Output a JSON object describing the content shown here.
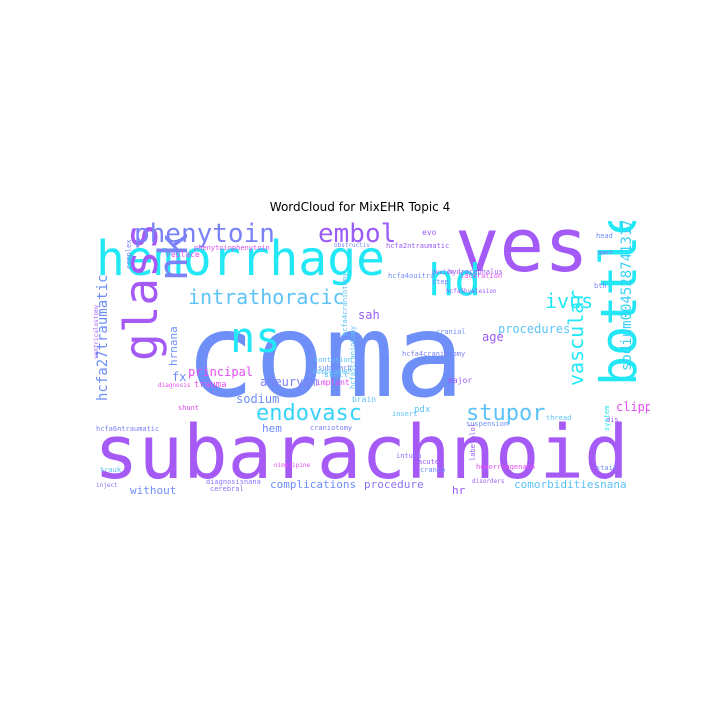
{
  "title": "WordCloud for MixEHR Topic 4",
  "colors": {
    "cyan": "#22e8f6",
    "blue": "#6e8ef8",
    "lightblue": "#5cc2f8",
    "violet": "#9b5cf8",
    "purple": "#b05af7",
    "magenta": "#e24ff1",
    "pink": "#f34ff3"
  },
  "words": [
    {
      "text": "coma",
      "color": "#6e8ef8"
    },
    {
      "text": "subarachnoid",
      "color": "#a55af6"
    },
    {
      "text": "ves",
      "color": "#a35af7"
    },
    {
      "text": "hemorrhage",
      "color": "#22e8f6"
    },
    {
      "text": "bottle",
      "color": "#22e8f6"
    },
    {
      "text": "glass",
      "color": "#a55af6"
    },
    {
      "text": "nk",
      "color": "#7a82f7"
    },
    {
      "text": "hd",
      "color": "#22e8f6"
    },
    {
      "text": "ns",
      "color": "#22e8f6"
    },
    {
      "text": "phenytoin",
      "color": "#7a82f7"
    },
    {
      "text": "embol",
      "color": "#9b5cf8"
    },
    {
      "text": "intrathoracic",
      "color": "#5cc2f8"
    },
    {
      "text": "ivus",
      "color": "#22e8f6"
    },
    {
      "text": "vascular",
      "color": "#22e8f6"
    },
    {
      "text": "endovasc",
      "color": "#38d2f7"
    },
    {
      "text": "stupor",
      "color": "#5cc2f8"
    },
    {
      "text": "sodium00452874131761",
      "color": "#38d2f7"
    },
    {
      "text": "hcfa27traumatic",
      "color": "#6e8ef8"
    },
    {
      "text": "procedures",
      "color": "#5cc2f8"
    },
    {
      "text": "sah",
      "color": "#9b5cf8"
    },
    {
      "text": "age",
      "color": "#9b5cf8"
    },
    {
      "text": "aneurysm",
      "color": "#7a82f7"
    },
    {
      "text": "principal",
      "color": "#e24ff1"
    },
    {
      "text": "sodium",
      "color": "#6e8ef8"
    },
    {
      "text": "clipping",
      "color": "#e24ff1"
    },
    {
      "text": "fx",
      "color": "#6e8ef8"
    },
    {
      "text": "hrnana",
      "color": "#6e8ef8"
    },
    {
      "text": "hem",
      "color": "#6e8ef8"
    },
    {
      "text": "complications",
      "color": "#6e8ef8"
    },
    {
      "text": "procedure",
      "color": "#8e72f7"
    },
    {
      "text": "comorbiditiesnana",
      "color": "#5cc2f8"
    },
    {
      "text": "without",
      "color": "#6e8ef8"
    },
    {
      "text": "hr",
      "color": "#9b5cf8"
    },
    {
      "text": "trauma",
      "color": "#e24ff1"
    },
    {
      "text": "skull",
      "color": "#5cc2f8"
    },
    {
      "text": "implant",
      "color": "#e24ff1"
    },
    {
      "text": "pdx",
      "color": "#5cc2f8"
    },
    {
      "text": "major",
      "color": "#9b5cf8"
    },
    {
      "text": "brain",
      "color": "#5cc2f8"
    },
    {
      "text": "shunt",
      "color": "#e24ff1"
    },
    {
      "text": "contusion",
      "color": "#5cc2f8"
    },
    {
      "text": "subarach",
      "color": "#6e8ef8"
    },
    {
      "text": "compiated",
      "color": "#5cc2f8"
    },
    {
      "text": "hcfa4craniotomy",
      "color": "#5cc2f8"
    },
    {
      "text": "hcfa5craniotomy",
      "color": "#5cc2f8"
    },
    {
      "text": "hcfa4craniotomy",
      "color": "#7a82f7"
    },
    {
      "text": "hcfa4ouitra",
      "color": "#6e8ef8"
    },
    {
      "text": "hcfa6ntraumatic",
      "color": "#7a82f7"
    },
    {
      "text": "diagnosis",
      "color": "#e24ff1"
    },
    {
      "text": "diagnosisnana",
      "color": "#8e72f7"
    },
    {
      "text": "hydrocephalus",
      "color": "#9b5cf8"
    },
    {
      "text": "laceration",
      "color": "#e24ff1"
    },
    {
      "text": "device",
      "color": "#9b5cf8"
    },
    {
      "text": "step",
      "color": "#7a82f7"
    },
    {
      "text": "cranial",
      "color": "#6e8ef8"
    },
    {
      "text": "insert",
      "color": "#5cc2f8"
    },
    {
      "text": "intusa",
      "color": "#8e72f7"
    },
    {
      "text": "cerebral",
      "color": "#8e72f7"
    },
    {
      "text": "inject",
      "color": "#8e72f7"
    },
    {
      "text": "hemorrhagenana",
      "color": "#e24ff1"
    },
    {
      "text": "suspension",
      "color": "#6e8ef8"
    },
    {
      "text": "stair",
      "color": "#6e8ef8"
    },
    {
      "text": "hcfa5hyalesion",
      "color": "#9b5cf8"
    },
    {
      "text": "complex",
      "color": "#7a82f7"
    },
    {
      "text": "replace",
      "color": "#e24ff1"
    },
    {
      "text": "phenytoinphenytoin",
      "color": "#e24ff1"
    },
    {
      "text": "obstructiv",
      "color": "#7a82f7"
    },
    {
      "text": "hcfa2ntraumatic",
      "color": "#9b5cf8"
    },
    {
      "text": "craniotomy",
      "color": "#7a82f7"
    },
    {
      "text": "evo",
      "color": "#9b5cf8"
    },
    {
      "text": "trauk",
      "color": "#5cc2f8"
    },
    {
      "text": "cranio",
      "color": "#6e8ef8"
    },
    {
      "text": "disorders",
      "color": "#9b5cf8"
    },
    {
      "text": "labetalol",
      "color": "#9b5cf8"
    },
    {
      "text": "acute",
      "color": "#9b5cf8"
    },
    {
      "text": "dis",
      "color": "#9b5cf8"
    },
    {
      "text": "head",
      "color": "#6e8ef8"
    },
    {
      "text": "bth",
      "color": "#7a82f7"
    },
    {
      "text": "nimodipine",
      "color": "#e24ff1"
    },
    {
      "text": "ventriculostomy",
      "color": "#9b5cf8"
    },
    {
      "text": "system",
      "color": "#22e8f6"
    },
    {
      "text": "thread",
      "color": "#5cc2f8"
    },
    {
      "text": "agent",
      "color": "#9b5cf8"
    }
  ]
}
